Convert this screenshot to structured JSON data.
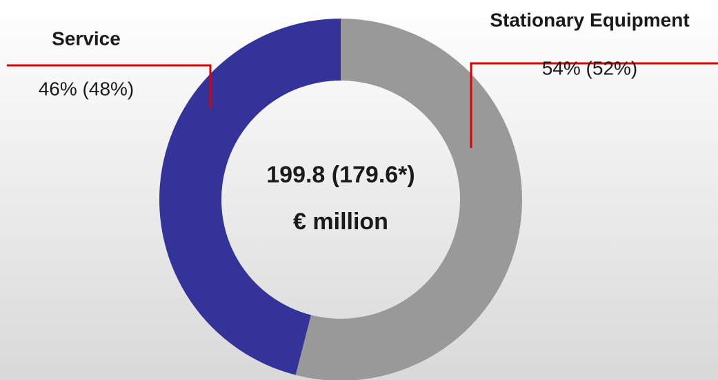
{
  "chart_data": {
    "type": "donut",
    "categories": [
      "Stationary Equipment",
      "Service"
    ],
    "values": [
      54,
      46
    ],
    "value_labels": [
      "54% (52%)",
      "46% (48%)"
    ],
    "colors": [
      "#999999",
      "#333399"
    ],
    "center_text": [
      "199.8 (179.6*)",
      "€ million"
    ]
  }
}
